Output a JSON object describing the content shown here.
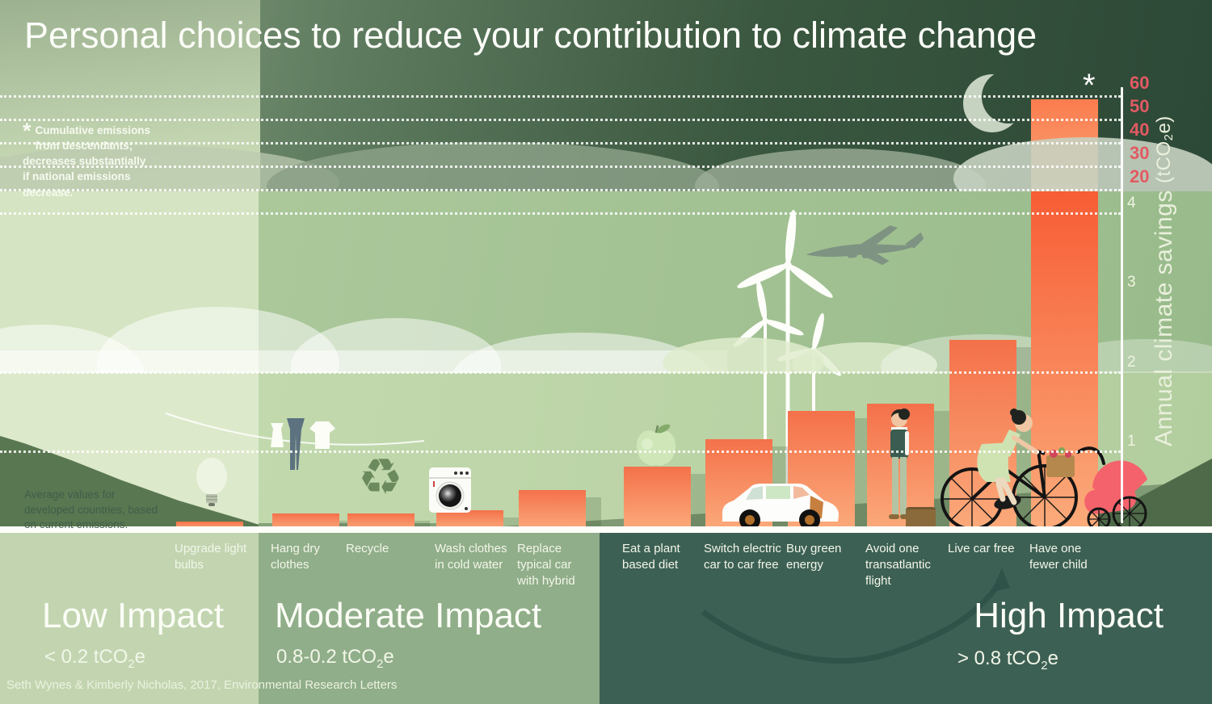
{
  "title": "Personal choices to reduce your contribution to climate change",
  "footnote": {
    "symbol": "*",
    "text": "Cumulative emissions\nfrom descendants;\ndecreases substantially\nif national emissions\ndecrease."
  },
  "note_left": "Average values for developed countries, based on current emissions.",
  "source": "Seth Wynes & Kimberly Nicholas, 2017, Environmental Research Letters",
  "axis": {
    "label_main": "Annual climate savings ",
    "unit_pre": "(tCO",
    "unit_sub": "2",
    "unit_post": "e)",
    "upper_ticks": [
      60,
      50,
      40,
      30,
      20
    ],
    "lower_ticks": [
      4,
      3,
      2,
      1
    ]
  },
  "impact_sections": [
    {
      "name": "Low Impact",
      "range_pre": "< 0.2 tCO",
      "range_sub": "2",
      "range_post": "e"
    },
    {
      "name": "Moderate Impact",
      "range_pre": "0.8-0.2 tCO",
      "range_sub": "2",
      "range_post": "e"
    },
    {
      "name": "High Impact",
      "range_pre": "> 0.8 tCO",
      "range_sub": "2",
      "range_post": "e"
    }
  ],
  "chart_data": {
    "type": "bar",
    "title": "Personal choices to reduce your contribution to climate change",
    "ylabel": "Annual climate savings (tCO₂e)",
    "categories": [
      "Upgrade light bulbs",
      "Hang dry clothes",
      "Recycle",
      "Wash clothes in cold water",
      "Replace typical car with hybrid",
      "Eat a plant based diet",
      "Switch electric car to car free",
      "Buy green energy",
      "Avoid one transatlantic flight",
      "Live car free",
      "Have one fewer child"
    ],
    "values": [
      0.1,
      0.2,
      0.2,
      0.25,
      0.5,
      0.8,
      1.15,
      1.5,
      1.6,
      2.4,
      58.6
    ],
    "marker": "*",
    "marked_category": "Have one fewer child",
    "lower_axis_range": [
      0,
      4
    ],
    "upper_axis_range": [
      20,
      60
    ],
    "upper_axis_ticks": [
      60,
      50,
      40,
      30,
      20
    ],
    "lower_axis_ticks": [
      4,
      3,
      2,
      1
    ],
    "gridlines": "dotted, white",
    "legend_position": "none",
    "groups": [
      {
        "label": "Low Impact",
        "range": "< 0.2 tCO₂e",
        "category_indices": [
          0,
          0
        ]
      },
      {
        "label": "Moderate Impact",
        "range": "0.8-0.2 tCO₂e",
        "category_indices": [
          1,
          4
        ]
      },
      {
        "label": "High Impact",
        "range": "> 0.8 tCO₂e",
        "category_indices": [
          5,
          10
        ]
      }
    ]
  },
  "icons": [
    "crescent-moon-icon",
    "cloud-icon",
    "light-bulb-icon",
    "clothesline-icon",
    "recycle-icon",
    "washing-machine-icon",
    "apple-icon",
    "wind-turbine-icon",
    "airplane-icon",
    "car-icon",
    "standing-person-icon",
    "suitcase-icon",
    "bicycle-rider-icon",
    "pram-icon",
    "swoosh-arrow-icon"
  ],
  "colors": {
    "sky_dark": "#2e4a39",
    "band_low_impact": "#c2d5b0",
    "band_moderate": "#90ae89",
    "band_high": "#3d6054",
    "bar_gradient_top": "#f4714a",
    "bar_gradient_bottom": "#fbaa7b",
    "tall_bar_upper_segment": [
      "#fa7c4e",
      "#fba77a"
    ],
    "tall_bar_lower_segment": [
      "#f75d35",
      "#fbab7b"
    ],
    "upper_tick_color": "#e25a63",
    "recycle_green": "#6b8a5e",
    "pram_pink": "#f4636c"
  }
}
